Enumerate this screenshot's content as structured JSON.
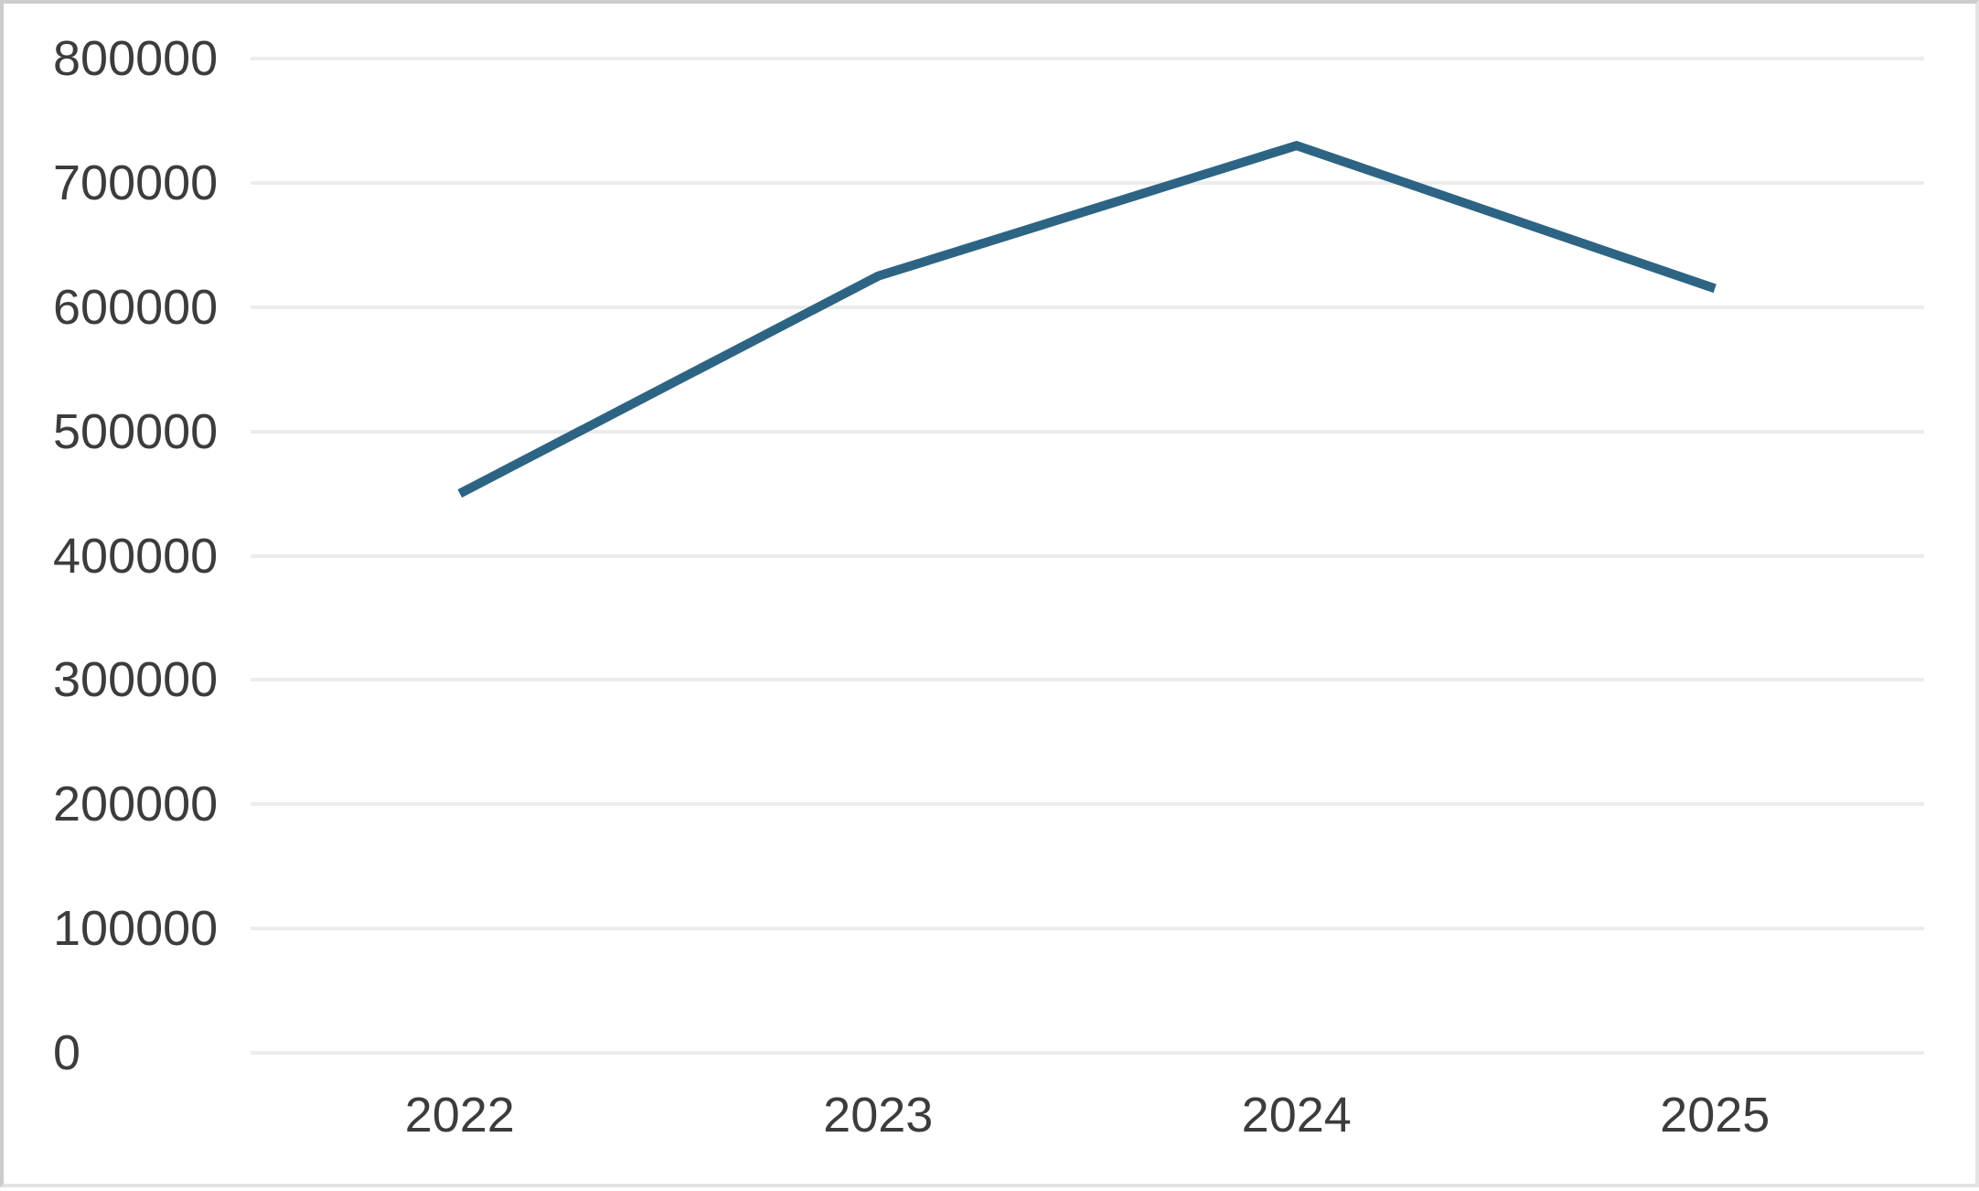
{
  "chart_data": {
    "type": "line",
    "title": "",
    "xlabel": "",
    "ylabel": "",
    "categories": [
      "2022",
      "2023",
      "2024",
      "2025"
    ],
    "values": [
      450000,
      625000,
      730000,
      615000
    ],
    "ylim": [
      0,
      800000
    ],
    "y_ticks": [
      "0",
      "100000",
      "200000",
      "300000",
      "400000",
      "500000",
      "600000",
      "700000",
      "800000"
    ],
    "grid": "horizontal",
    "legend": "none",
    "line_color": "#2d6484"
  },
  "colors": {
    "background": "#ffffff",
    "gridline": "#ececec",
    "tick_text": "#3c3c3c",
    "line": "#2d6484",
    "frame_dark": "#cccccc",
    "frame_light": "#e3e3e3"
  }
}
